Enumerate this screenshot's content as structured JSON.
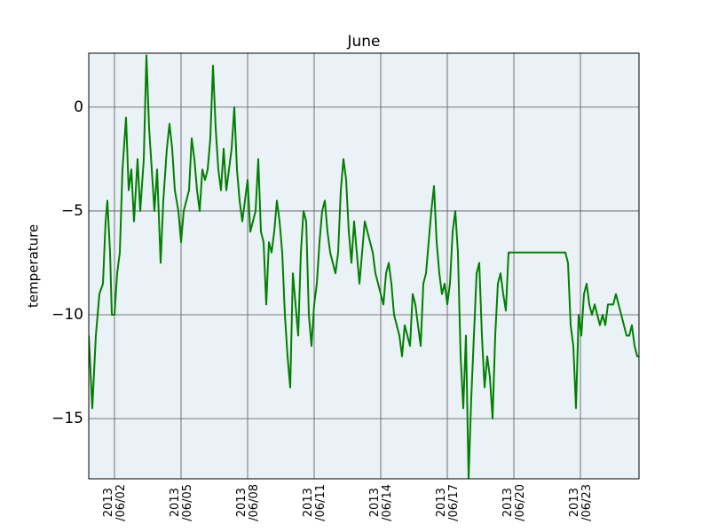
{
  "chart_data": {
    "type": "line",
    "title": "June",
    "y_label": "temperature",
    "xlim": [
      0.84,
      25.64
    ],
    "ylim": [
      -17.9,
      2.6
    ],
    "grid": true,
    "background": "#eaf1f7",
    "xticks": [
      {
        "value": 2,
        "label": "2013\n/06/02"
      },
      {
        "value": 5,
        "label": "2013\n/06/05"
      },
      {
        "value": 8,
        "label": "2013\n/06/08"
      },
      {
        "value": 11,
        "label": "2013\n/06/11"
      },
      {
        "value": 14,
        "label": "2013\n/06/14"
      },
      {
        "value": 17,
        "label": "2013\n/06/17"
      },
      {
        "value": 20,
        "label": "2013\n/06/20"
      },
      {
        "value": 23,
        "label": "2013\n/06/23"
      }
    ],
    "yticks": [
      0,
      {
        "value": -5,
        "label": "−5"
      },
      {
        "value": -10,
        "label": "−10"
      },
      {
        "value": -15,
        "label": "−15"
      }
    ],
    "x": [
      0.84,
      1.0,
      1.16,
      1.32,
      1.48,
      1.6,
      1.68,
      1.8,
      1.88,
      2.0,
      2.12,
      2.24,
      2.36,
      2.52,
      2.64,
      2.76,
      2.88,
      3.04,
      3.16,
      3.32,
      3.44,
      3.56,
      3.68,
      3.8,
      3.92,
      4.08,
      4.2,
      4.36,
      4.48,
      4.6,
      4.72,
      4.88,
      5,
      5.12,
      5.24,
      5.36,
      5.48,
      5.6,
      5.72,
      5.84,
      5.96,
      6.08,
      6.2,
      6.32,
      6.44,
      6.56,
      6.68,
      6.8,
      6.92,
      7.04,
      7.16,
      7.28,
      7.4,
      7.52,
      7.64,
      7.76,
      7.88,
      8,
      8.12,
      8.24,
      8.36,
      8.48,
      8.6,
      8.72,
      8.84,
      8.96,
      9.08,
      9.2,
      9.32,
      9.44,
      9.56,
      9.68,
      9.8,
      9.92,
      10.04,
      10.16,
      10.28,
      10.4,
      10.52,
      10.64,
      10.76,
      10.88,
      11,
      11.12,
      11.24,
      11.36,
      11.48,
      11.6,
      11.72,
      11.84,
      11.96,
      12.08,
      12.2,
      12.32,
      12.44,
      12.56,
      12.68,
      12.8,
      12.92,
      13.04,
      13.16,
      13.28,
      13.4,
      13.52,
      13.64,
      13.76,
      13.88,
      14,
      14.12,
      14.24,
      14.36,
      14.48,
      14.6,
      14.72,
      14.84,
      14.96,
      15.08,
      15.2,
      15.32,
      15.44,
      15.56,
      15.68,
      15.8,
      15.92,
      16.04,
      16.16,
      16.28,
      16.4,
      16.52,
      16.64,
      16.76,
      16.88,
      17,
      17.12,
      17.24,
      17.36,
      17.48,
      17.6,
      17.72,
      17.84,
      17.96,
      18.08,
      18.2,
      18.32,
      18.44,
      18.56,
      18.68,
      18.8,
      18.92,
      19.04,
      19.16,
      19.28,
      19.4,
      19.52,
      19.64,
      19.76,
      22.32,
      22.44,
      22.56,
      22.68,
      22.8,
      22.92,
      23.04,
      23.16,
      23.28,
      23.4,
      23.52,
      23.64,
      23.76,
      23.88,
      24,
      24.12,
      24.24,
      24.36,
      24.48,
      24.6,
      24.72,
      24.84,
      24.96,
      25.08,
      25.2,
      25.32,
      25.44,
      25.56,
      25.64
    ],
    "series": [
      {
        "color": "#008000",
        "values": [
          -11,
          -14.5,
          -11,
          -9,
          -8.5,
          -5.5,
          -4.5,
          -7,
          -10,
          -10,
          -8,
          -7,
          -3,
          -0.5,
          -4,
          -3,
          -5.5,
          -2.5,
          -5,
          -2.5,
          2.5,
          -1,
          -3,
          -5,
          -3,
          -7.5,
          -4.5,
          -2,
          -0.8,
          -2,
          -4,
          -5,
          -6.5,
          -5,
          -4.5,
          -4,
          -1.5,
          -2.5,
          -4,
          -5,
          -3,
          -3.5,
          -3,
          -1.5,
          2,
          -1,
          -3,
          -4,
          -2,
          -4,
          -3,
          -2,
          0,
          -3,
          -4.5,
          -5.5,
          -4.5,
          -3.5,
          -6,
          -5.5,
          -5,
          -2.5,
          -6,
          -6.5,
          -9.5,
          -6.5,
          -7,
          -6,
          -4.5,
          -5.5,
          -7,
          -10,
          -12,
          -13.5,
          -8,
          -9.5,
          -11,
          -7,
          -5,
          -5.5,
          -10,
          -11.5,
          -9.5,
          -8.5,
          -6.5,
          -5,
          -4.5,
          -6,
          -7,
          -7.5,
          -8,
          -7,
          -4,
          -2.5,
          -3.5,
          -6,
          -7.5,
          -5.5,
          -7,
          -8.5,
          -7,
          -5.5,
          -6,
          -6.5,
          -7,
          -8,
          -8.5,
          -9,
          -9.5,
          -8,
          -7.5,
          -8.5,
          -10,
          -10.5,
          -11,
          -12,
          -10.5,
          -11,
          -11.5,
          -9,
          -9.5,
          -10.5,
          -11.5,
          -8.5,
          -8,
          -6.5,
          -5,
          -3.8,
          -6.5,
          -8,
          -9,
          -8.5,
          -9.5,
          -8.5,
          -6,
          -5,
          -7,
          -12,
          -14.5,
          -11,
          -17.9,
          -14,
          -11,
          -8,
          -7.5,
          -11,
          -13.5,
          -12,
          -13,
          -15,
          -11,
          -8.5,
          -8,
          -9,
          -9.8,
          -7,
          -7,
          -7.5,
          -10.5,
          -11.5,
          -14.5,
          -10,
          -11,
          -9,
          -8.5,
          -9.5,
          -10,
          -9.5,
          -10,
          -10.5,
          -10,
          -10.5,
          -9.5,
          -9.5,
          -9.5,
          -9,
          -9.5,
          -10,
          -10.5,
          -11,
          -11,
          -10.5,
          -11.5,
          -12,
          -12
        ]
      }
    ]
  }
}
